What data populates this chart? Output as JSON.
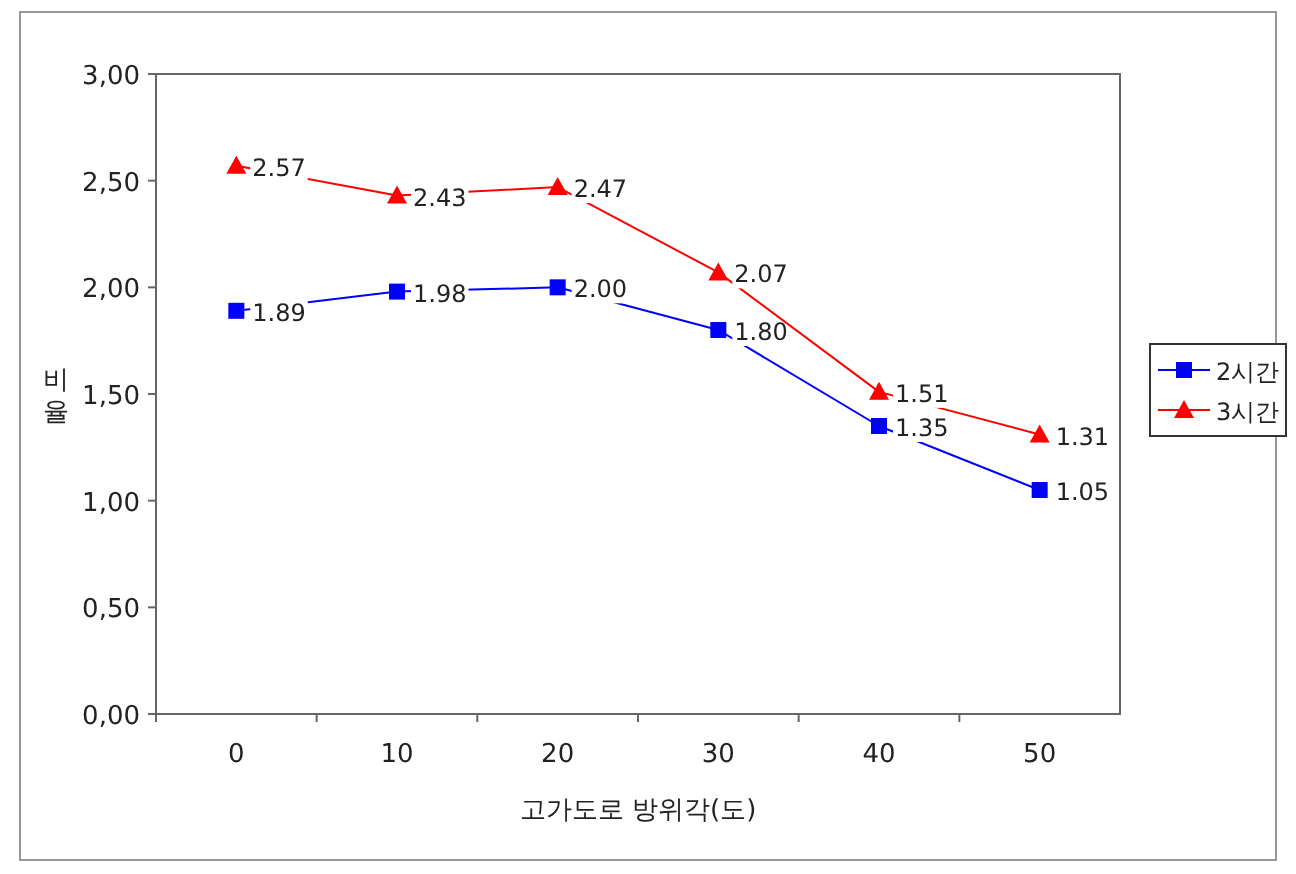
{
  "chart_data": {
    "type": "line",
    "xlabel": "고가도로 방위각(도)",
    "ylabel": "비율",
    "categories": [
      "0",
      "10",
      "20",
      "30",
      "40",
      "50"
    ],
    "series": [
      {
        "name": "2시간",
        "color": "#0000ff",
        "marker": "square",
        "values": [
          1.89,
          1.98,
          2.0,
          1.8,
          1.35,
          1.05
        ],
        "value_labels": [
          "1.89",
          "1.98",
          "2.00",
          "1.80",
          "1.35",
          "1.05"
        ]
      },
      {
        "name": "3시간",
        "color": "#ff0000",
        "marker": "triangle",
        "values": [
          2.57,
          2.43,
          2.47,
          2.07,
          1.51,
          1.31
        ],
        "value_labels": [
          "2.57",
          "2.43",
          "2.47",
          "2.07",
          "1.51",
          "1.31"
        ]
      }
    ],
    "ylim": [
      0,
      3
    ],
    "yticks": [
      {
        "value": 0,
        "label": "0,00"
      },
      {
        "value": 0.5,
        "label": "0,50"
      },
      {
        "value": 1,
        "label": "1,00"
      },
      {
        "value": 1.5,
        "label": "1,50"
      },
      {
        "value": 2,
        "label": "2,00"
      },
      {
        "value": 2.5,
        "label": "2,50"
      },
      {
        "value": 3,
        "label": "3,00"
      }
    ],
    "legend": "right",
    "grid": false
  }
}
